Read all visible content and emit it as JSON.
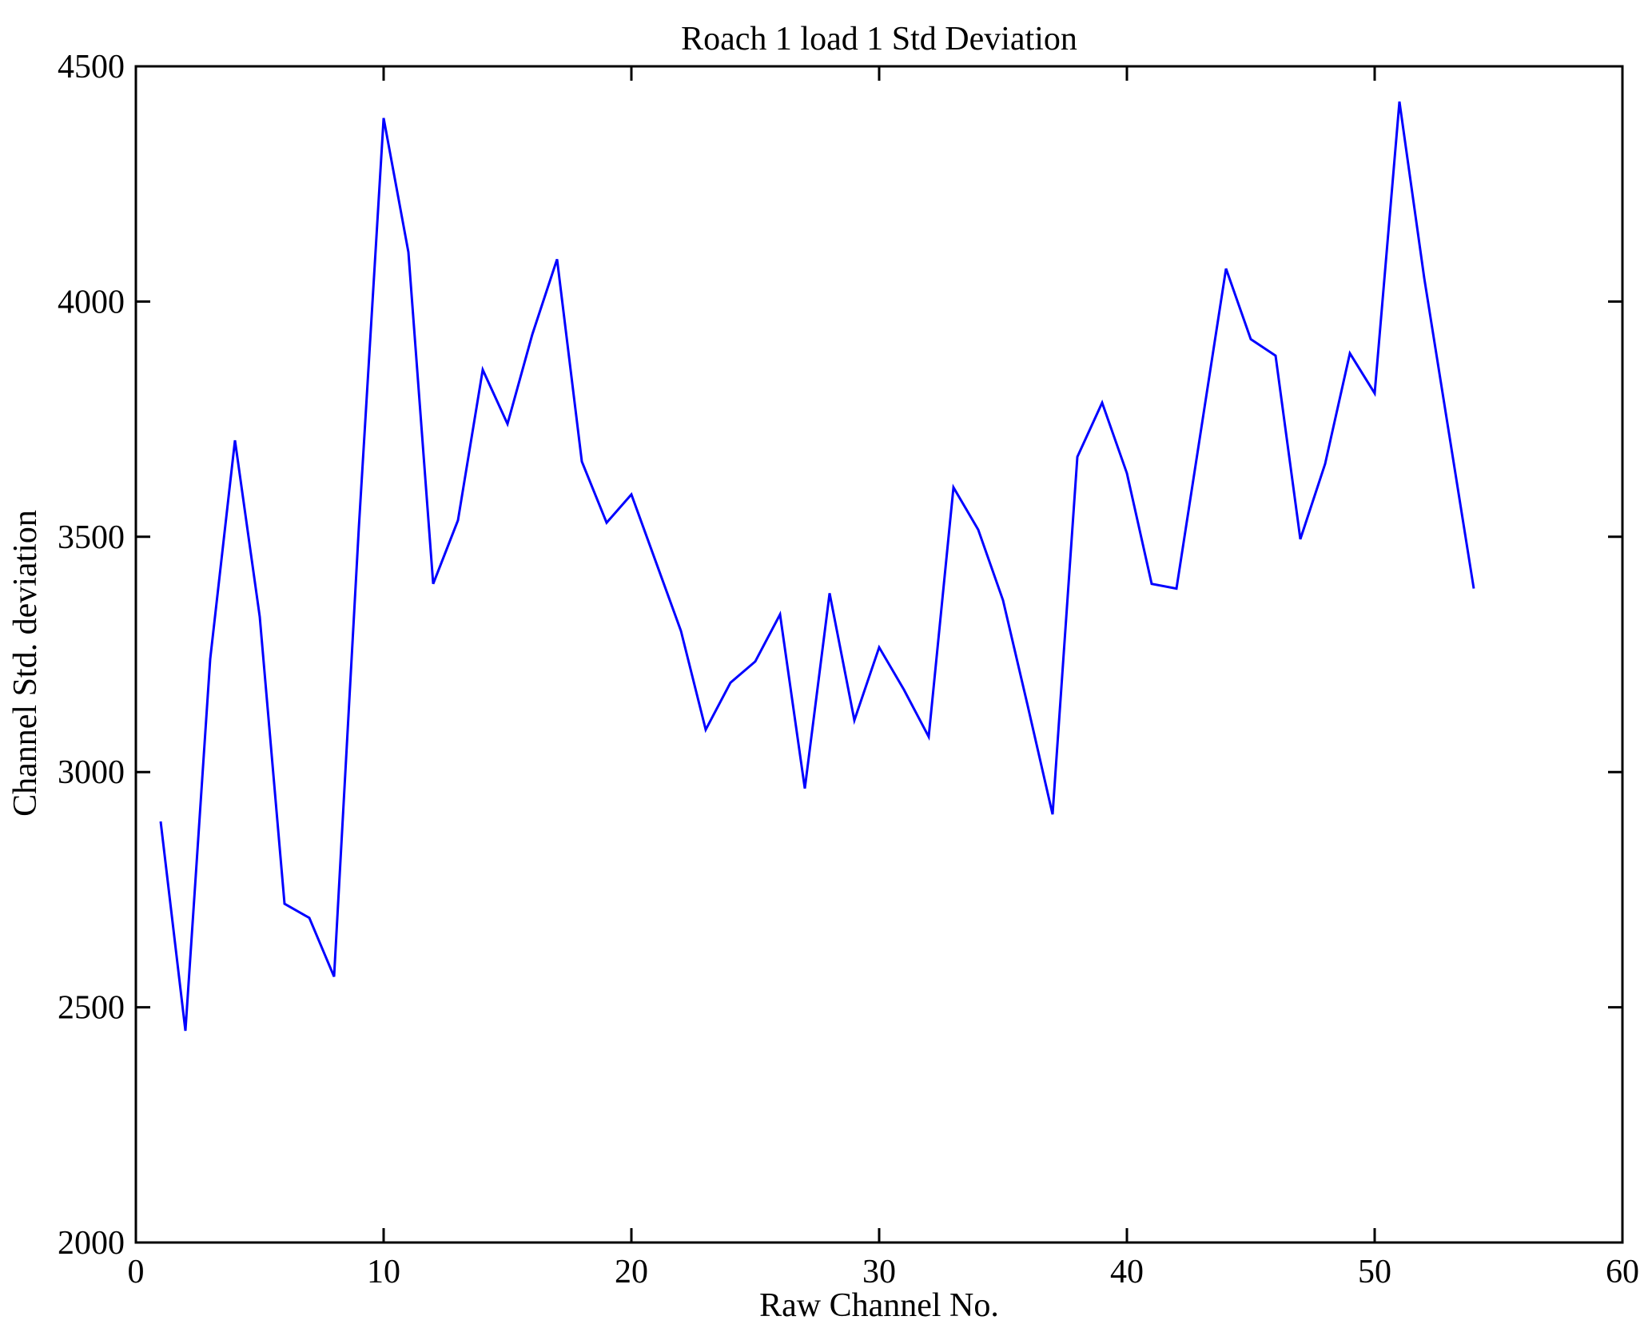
{
  "chart_data": {
    "type": "line",
    "title": "Roach 1 load 1 Std Deviation",
    "xlabel": "Raw Channel No.",
    "ylabel": "Channel Std. deviation",
    "xlim": [
      0,
      60
    ],
    "ylim": [
      2000,
      4500
    ],
    "x_ticks": [
      0,
      10,
      20,
      30,
      40,
      50,
      60
    ],
    "y_ticks": [
      2000,
      2500,
      3000,
      3500,
      4000,
      4500
    ],
    "grid": false,
    "legend": "none",
    "line_color": "#0000ff",
    "axis_color": "#000000",
    "background_color": "#ffffff",
    "x": [
      1,
      2,
      3,
      4,
      5,
      6,
      7,
      8,
      9,
      10,
      11,
      12,
      13,
      14,
      15,
      16,
      17,
      18,
      19,
      20,
      21,
      22,
      23,
      24,
      25,
      26,
      27,
      28,
      29,
      30,
      31,
      32,
      33,
      34,
      35,
      36,
      37,
      38,
      39,
      40,
      41,
      42,
      43,
      44,
      45,
      46,
      47,
      48,
      49,
      50,
      51,
      52,
      53,
      54
    ],
    "values": [
      2895,
      2450,
      3240,
      3705,
      3330,
      2720,
      2690,
      2565,
      3520,
      4390,
      4105,
      3400,
      3535,
      3855,
      3740,
      3930,
      4090,
      3660,
      3530,
      3590,
      3445,
      3300,
      3090,
      3190,
      3235,
      3335,
      2965,
      3380,
      3110,
      3265,
      3175,
      3075,
      3605,
      3515,
      3365,
      3140,
      2910,
      3670,
      3785,
      3635,
      3400,
      3390,
      3730,
      4070,
      3920,
      3885,
      3495,
      3655,
      3890,
      3805,
      4425,
      4050,
      3720,
      3390
    ]
  }
}
